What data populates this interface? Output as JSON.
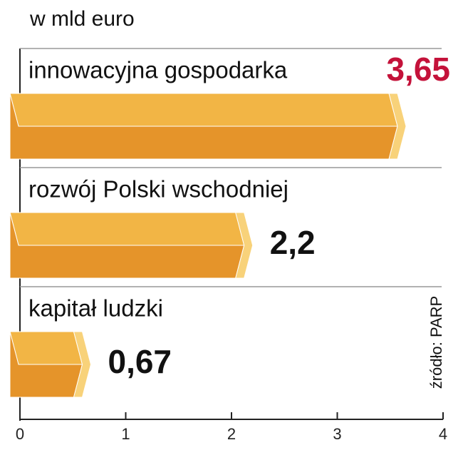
{
  "chart_data": {
    "type": "hbar",
    "unit": "w mld euro",
    "source": "źródło: PARP",
    "categories": [
      "innowacyjna gospodarka",
      "rozwój Polski wschodniej",
      "kapitał ludzki"
    ],
    "values": [
      3.65,
      2.2,
      0.67
    ],
    "value_labels": [
      "3,65",
      "2,2",
      "0,67"
    ],
    "value_label_colors": [
      "#c4123a",
      "#111111",
      "#111111"
    ],
    "color_top": "#f2b545",
    "color_bottom": "#e5942a",
    "color_cap": "#f8d27a",
    "xlim": [
      0,
      4
    ],
    "xticks": [
      0,
      1,
      2,
      3,
      4
    ]
  }
}
